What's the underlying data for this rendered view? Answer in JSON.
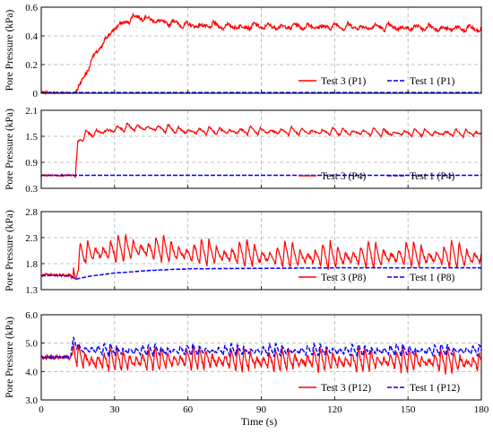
{
  "chart_data": {
    "type": "line",
    "xlabel": "Time (s)",
    "xlim": [
      0,
      180
    ],
    "xticks": [
      "0",
      "30",
      "60",
      "90",
      "120",
      "150",
      "180"
    ],
    "grid": true,
    "legend_placement": "bottom-right",
    "panels": [
      {
        "ylabel": "Pore Pressure (kPa)",
        "ylim": [
          0,
          0.6
        ],
        "yticks": [
          "0",
          "0.2",
          "0.4",
          "0.6"
        ],
        "series": [
          {
            "name": "Test 3 (P1)",
            "color": "#ff0000",
            "dash": "solid",
            "x": [
              0,
              14,
              16,
              20,
              25,
              30,
              35,
              40,
              45,
              50,
              60,
              80,
              100,
              120,
              140,
              160,
              180
            ],
            "y": [
              0,
              0,
              0.06,
              0.2,
              0.34,
              0.45,
              0.5,
              0.53,
              0.51,
              0.49,
              0.47,
              0.46,
              0.46,
              0.46,
              0.455,
              0.45,
              0.44
            ],
            "noise": 0.012,
            "spike_amp": 0.05,
            "spike_period": 5.5
          },
          {
            "name": "Test 1 (P1)",
            "color": "#0000ff",
            "dash": "dashed",
            "x": [
              0,
              180
            ],
            "y": [
              0.005,
              0.005
            ],
            "noise": 0,
            "spike_amp": 0,
            "spike_period": 0
          }
        ]
      },
      {
        "ylabel": "Pore Pressure (kPa)",
        "ylim": [
          0.3,
          2.1
        ],
        "yticks": [
          "0.3",
          "0.9",
          "1.5",
          "2.1"
        ],
        "series": [
          {
            "name": "Test 3 (P4)",
            "color": "#ff0000",
            "dash": "solid",
            "x": [
              0,
              13,
              14,
              15,
              18,
              25,
              35,
              45,
              60,
              90,
              120,
              150,
              180
            ],
            "y": [
              0.6,
              0.6,
              0.56,
              1.35,
              1.5,
              1.6,
              1.68,
              1.68,
              1.6,
              1.6,
              1.58,
              1.56,
              1.55
            ],
            "noise": 0.02,
            "spike_amp": 0.2,
            "spike_period": 4.2
          },
          {
            "name": "Test 1 (P4)",
            "color": "#0000ff",
            "dash": "dashed",
            "x": [
              0,
              180
            ],
            "y": [
              0.6,
              0.6
            ],
            "noise": 0,
            "spike_amp": 0,
            "spike_period": 0
          }
        ]
      },
      {
        "ylabel": "Pore Pressure (kPa)",
        "ylim": [
          1.3,
          2.8
        ],
        "yticks": [
          "1.3",
          "1.8",
          "2.3",
          "2.8"
        ],
        "series": [
          {
            "name": "Test 3 (P8)",
            "color": "#ff0000",
            "dash": "solid",
            "x": [
              0,
              12,
              14,
              15,
              18,
              30,
              40,
              60,
              90,
              120,
              150,
              180
            ],
            "y": [
              1.58,
              1.58,
              1.43,
              1.8,
              1.95,
              2.0,
              2.05,
              1.95,
              1.9,
              1.88,
              1.9,
              1.88
            ],
            "noise": 0.03,
            "spike_amp": 0.55,
            "spike_period": 3.1
          },
          {
            "name": "Test 1 (P8)",
            "color": "#0000ff",
            "dash": "dashed",
            "x": [
              0,
              12,
              14,
              20,
              30,
              45,
              60,
              90,
              120,
              150,
              180
            ],
            "y": [
              1.57,
              1.57,
              1.5,
              1.56,
              1.62,
              1.67,
              1.7,
              1.71,
              1.72,
              1.72,
              1.72
            ],
            "noise": 0.004,
            "spike_amp": 0,
            "spike_period": 0
          }
        ]
      },
      {
        "ylabel": "Pore Pressure (kPa)",
        "ylim": [
          3.0,
          6.0
        ],
        "yticks": [
          "3.0",
          "4.0",
          "5.0",
          "6.0"
        ],
        "series": [
          {
            "name": "Test 3 (P12)",
            "color": "#ff0000",
            "dash": "solid",
            "x": [
              0,
              12,
              13,
              14,
              20,
              40,
              60,
              90,
              120,
              150,
              180
            ],
            "y": [
              4.5,
              4.5,
              4.7,
              4.5,
              4.3,
              4.3,
              4.35,
              4.3,
              4.3,
              4.3,
              4.25
            ],
            "noise": 0.08,
            "spike_amp": 0.9,
            "spike_period": 2.6
          },
          {
            "name": "Test 1 (P12)",
            "color": "#0000ff",
            "dash": "dashed",
            "x": [
              0,
              12,
              13,
              16,
              30,
              60,
              90,
              120,
              150,
              180
            ],
            "y": [
              4.5,
              4.5,
              5.1,
              4.75,
              4.7,
              4.7,
              4.7,
              4.7,
              4.7,
              4.7
            ],
            "noise": 0.03,
            "spike_amp": 0.45,
            "spike_period": 2.6
          }
        ]
      }
    ]
  }
}
